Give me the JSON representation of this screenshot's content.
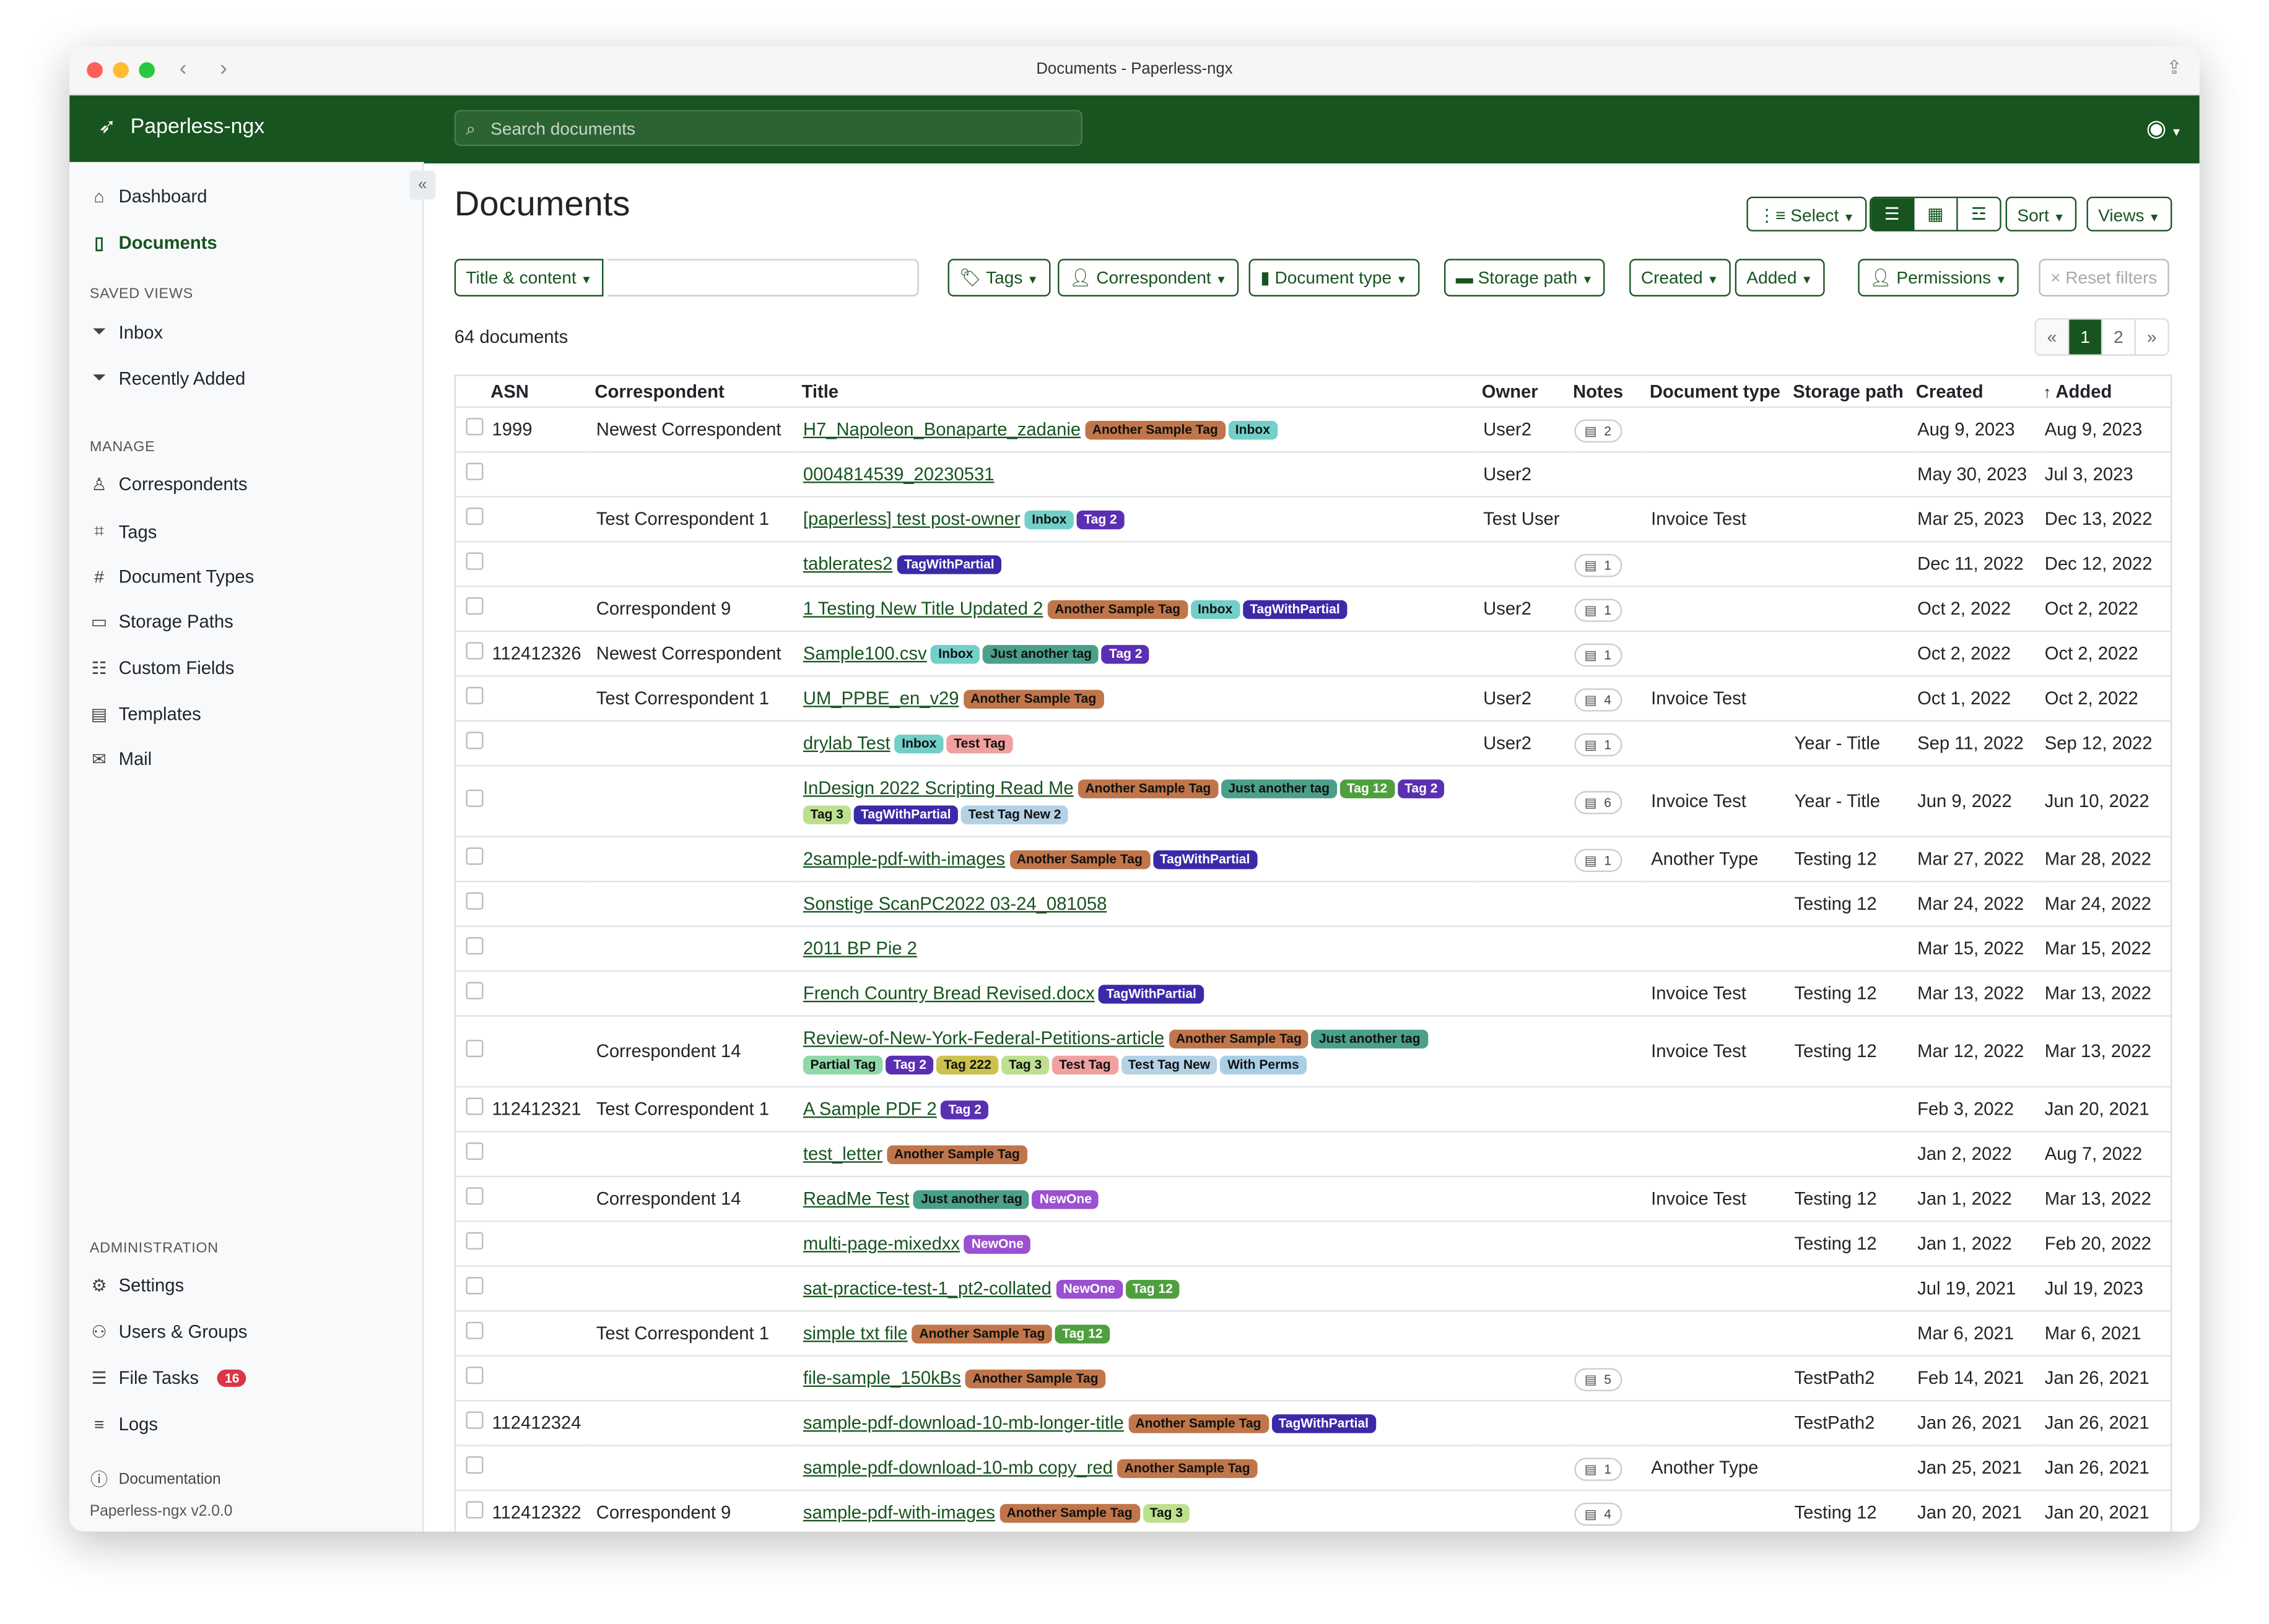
{
  "window": {
    "title": "Documents - Paperless-ngx"
  },
  "app": {
    "name": "Paperless-ngx",
    "search_placeholder": "Search documents"
  },
  "sidebar": {
    "items": [
      {
        "label": "Dashboard",
        "icon": "house-icon"
      },
      {
        "label": "Documents",
        "icon": "file-icon"
      }
    ],
    "saved_views_heading": "SAVED VIEWS",
    "saved_views": [
      {
        "label": "Inbox"
      },
      {
        "label": "Recently Added"
      }
    ],
    "manage_heading": "MANAGE",
    "manage": [
      {
        "label": "Correspondents",
        "icon": "person-icon"
      },
      {
        "label": "Tags",
        "icon": "tag-icon"
      },
      {
        "label": "Document Types",
        "icon": "hash-icon"
      },
      {
        "label": "Storage Paths",
        "icon": "folder-icon"
      },
      {
        "label": "Custom Fields",
        "icon": "list-icon"
      },
      {
        "label": "Templates",
        "icon": "template-icon"
      },
      {
        "label": "Mail",
        "icon": "envelope-icon"
      }
    ],
    "admin_heading": "ADMINISTRATION",
    "admin": [
      {
        "label": "Settings",
        "icon": "gear-icon"
      },
      {
        "label": "Users & Groups",
        "icon": "people-icon"
      },
      {
        "label": "File Tasks",
        "icon": "tasks-icon",
        "badge": "16"
      },
      {
        "label": "Logs",
        "icon": "logs-icon"
      }
    ],
    "documentation": "Documentation",
    "version": "Paperless-ngx v2.0.0"
  },
  "main": {
    "title": "Documents",
    "select": "Select",
    "sort": "Sort",
    "views": "Views",
    "filters": {
      "title_content": "Title & content",
      "tags": "Tags",
      "correspondent": "Correspondent",
      "document_type": "Document type",
      "storage_path": "Storage path",
      "created": "Created",
      "added": "Added",
      "permissions": "Permissions",
      "reset": "Reset filters"
    },
    "count": "64 documents",
    "pager": {
      "prev": "«",
      "pages": [
        "1",
        "2"
      ],
      "current": "1",
      "next": "»"
    },
    "columns": {
      "asn": "ASN",
      "correspondent": "Correspondent",
      "title": "Title",
      "owner": "Owner",
      "notes": "Notes",
      "doctype": "Document type",
      "storage": "Storage path",
      "created": "Created",
      "added": "Added"
    }
  },
  "tag_colors": {
    "Another Sample Tag": [
      "#c0764a",
      "#111"
    ],
    "Inbox": [
      "#72d0c9",
      "#111"
    ],
    "Tag 2": [
      "#5a2fb2",
      "#fff"
    ],
    "TagWithPartial": [
      "#3b2aa8",
      "#fff"
    ],
    "Just another tag": [
      "#4ba08a",
      "#111"
    ],
    "Test Tag": [
      "#f0a19f",
      "#111"
    ],
    "Tag 12": [
      "#4f9f3f",
      "#fff"
    ],
    "Tag 3": [
      "#bde08f",
      "#111"
    ],
    "Test Tag New 2": [
      "#b4d1e6",
      "#111"
    ],
    "Partial Tag": [
      "#8ed9a8",
      "#111"
    ],
    "Tag 222": [
      "#cbc24e",
      "#111"
    ],
    "Test Tag New": [
      "#b4d1e6",
      "#111"
    ],
    "With Perms": [
      "#a9cfe6",
      "#111"
    ],
    "NewOne": [
      "#9a50d0",
      "#fff"
    ]
  },
  "rows": [
    {
      "asn": "1999",
      "correspondent": "Newest Correspondent",
      "title": "H7_Napoleon_Bonaparte_zadanie",
      "tags": [
        "Another Sample Tag",
        "Inbox"
      ],
      "owner": "User2",
      "notes": "2",
      "doctype": "",
      "storage": "",
      "created": "Aug 9, 2023",
      "added": "Aug 9, 2023"
    },
    {
      "asn": "",
      "correspondent": "",
      "title": "0004814539_20230531",
      "tags": [],
      "owner": "User2",
      "notes": "",
      "doctype": "",
      "storage": "",
      "created": "May 30, 2023",
      "added": "Jul 3, 2023"
    },
    {
      "asn": "",
      "correspondent": "Test Correspondent 1",
      "title": "[paperless] test post-owner",
      "tags": [
        "Inbox",
        "Tag 2"
      ],
      "owner": "Test User",
      "notes": "",
      "doctype": "Invoice Test",
      "storage": "",
      "created": "Mar 25, 2023",
      "added": "Dec 13, 2022"
    },
    {
      "asn": "",
      "correspondent": "",
      "title": "tablerates2",
      "tags": [
        "TagWithPartial"
      ],
      "owner": "",
      "notes": "1",
      "doctype": "",
      "storage": "",
      "created": "Dec 11, 2022",
      "added": "Dec 12, 2022"
    },
    {
      "asn": "",
      "correspondent": "Correspondent 9",
      "title": "1 Testing New Title Updated 2",
      "tags": [
        "Another Sample Tag",
        "Inbox",
        "TagWithPartial"
      ],
      "owner": "User2",
      "notes": "1",
      "doctype": "",
      "storage": "",
      "created": "Oct 2, 2022",
      "added": "Oct 2, 2022"
    },
    {
      "asn": "112412326",
      "correspondent": "Newest Correspondent",
      "title": "Sample100.csv",
      "tags": [
        "Inbox",
        "Just another tag",
        "Tag 2"
      ],
      "owner": "",
      "notes": "1",
      "doctype": "",
      "storage": "",
      "created": "Oct 2, 2022",
      "added": "Oct 2, 2022"
    },
    {
      "asn": "",
      "correspondent": "Test Correspondent 1",
      "title": "UM_PPBE_en_v29",
      "tags": [
        "Another Sample Tag"
      ],
      "owner": "User2",
      "notes": "4",
      "doctype": "Invoice Test",
      "storage": "",
      "created": "Oct 1, 2022",
      "added": "Oct 2, 2022"
    },
    {
      "asn": "",
      "correspondent": "",
      "title": "drylab Test",
      "tags": [
        "Inbox",
        "Test Tag"
      ],
      "owner": "User2",
      "notes": "1",
      "doctype": "",
      "storage": "Year - Title",
      "created": "Sep 11, 2022",
      "added": "Sep 12, 2022"
    },
    {
      "asn": "",
      "correspondent": "",
      "title": "InDesign 2022 Scripting Read Me",
      "tags": [
        "Another Sample Tag",
        "Just another tag",
        "Tag 12",
        "Tag 2",
        "Tag 3",
        "TagWithPartial",
        "Test Tag New 2"
      ],
      "owner": "",
      "notes": "6",
      "doctype": "Invoice Test",
      "storage": "Year - Title",
      "created": "Jun 9, 2022",
      "added": "Jun 10, 2022"
    },
    {
      "asn": "",
      "correspondent": "",
      "title": "2sample-pdf-with-images",
      "tags": [
        "Another Sample Tag",
        "TagWithPartial"
      ],
      "owner": "",
      "notes": "1",
      "doctype": "Another Type",
      "storage": "Testing 12",
      "created": "Mar 27, 2022",
      "added": "Mar 28, 2022"
    },
    {
      "asn": "",
      "correspondent": "",
      "title": "Sonstige ScanPC2022 03-24_081058",
      "tags": [],
      "owner": "",
      "notes": "",
      "doctype": "",
      "storage": "Testing 12",
      "created": "Mar 24, 2022",
      "added": "Mar 24, 2022"
    },
    {
      "asn": "",
      "correspondent": "",
      "title": "2011 BP Pie 2",
      "tags": [],
      "owner": "",
      "notes": "",
      "doctype": "",
      "storage": "",
      "created": "Mar 15, 2022",
      "added": "Mar 15, 2022"
    },
    {
      "asn": "",
      "correspondent": "",
      "title": "French Country Bread Revised.docx",
      "tags": [
        "TagWithPartial"
      ],
      "owner": "",
      "notes": "",
      "doctype": "Invoice Test",
      "storage": "Testing 12",
      "created": "Mar 13, 2022",
      "added": "Mar 13, 2022"
    },
    {
      "asn": "",
      "correspondent": "Correspondent 14",
      "title": "Review-of-New-York-Federal-Petitions-article",
      "tags": [
        "Another Sample Tag",
        "Just another tag",
        "Partial Tag",
        "Tag 2",
        "Tag 222",
        "Tag 3",
        "Test Tag",
        "Test Tag New",
        "With Perms"
      ],
      "owner": "",
      "notes": "",
      "doctype": "Invoice Test",
      "storage": "Testing 12",
      "created": "Mar 12, 2022",
      "added": "Mar 13, 2022"
    },
    {
      "asn": "112412321",
      "correspondent": "Test Correspondent 1",
      "title": "A Sample PDF 2",
      "tags": [
        "Tag 2"
      ],
      "owner": "",
      "notes": "",
      "doctype": "",
      "storage": "",
      "created": "Feb 3, 2022",
      "added": "Jan 20, 2021"
    },
    {
      "asn": "",
      "correspondent": "",
      "title": "test_letter",
      "tags": [
        "Another Sample Tag"
      ],
      "owner": "",
      "notes": "",
      "doctype": "",
      "storage": "",
      "created": "Jan 2, 2022",
      "added": "Aug 7, 2022"
    },
    {
      "asn": "",
      "correspondent": "Correspondent 14",
      "title": "ReadMe Test",
      "tags": [
        "Just another tag",
        "NewOne"
      ],
      "owner": "",
      "notes": "",
      "doctype": "Invoice Test",
      "storage": "Testing 12",
      "created": "Jan 1, 2022",
      "added": "Mar 13, 2022"
    },
    {
      "asn": "",
      "correspondent": "",
      "title": "multi-page-mixedxx",
      "tags": [
        "NewOne"
      ],
      "owner": "",
      "notes": "",
      "doctype": "",
      "storage": "Testing 12",
      "created": "Jan 1, 2022",
      "added": "Feb 20, 2022"
    },
    {
      "asn": "",
      "correspondent": "",
      "title": "sat-practice-test-1_pt2-collated",
      "tags": [
        "NewOne",
        "Tag 12"
      ],
      "owner": "",
      "notes": "",
      "doctype": "",
      "storage": "",
      "created": "Jul 19, 2021",
      "added": "Jul 19, 2023"
    },
    {
      "asn": "",
      "correspondent": "Test Correspondent 1",
      "title": "simple txt file",
      "tags": [
        "Another Sample Tag",
        "Tag 12"
      ],
      "owner": "",
      "notes": "",
      "doctype": "",
      "storage": "",
      "created": "Mar 6, 2021",
      "added": "Mar 6, 2021"
    },
    {
      "asn": "",
      "correspondent": "",
      "title": "file-sample_150kBs",
      "tags": [
        "Another Sample Tag"
      ],
      "owner": "",
      "notes": "5",
      "doctype": "",
      "storage": "TestPath2",
      "created": "Feb 14, 2021",
      "added": "Jan 26, 2021"
    },
    {
      "asn": "112412324",
      "correspondent": "",
      "title": "sample-pdf-download-10-mb-longer-title",
      "tags": [
        "Another Sample Tag",
        "TagWithPartial"
      ],
      "owner": "",
      "notes": "",
      "doctype": "",
      "storage": "TestPath2",
      "created": "Jan 26, 2021",
      "added": "Jan 26, 2021"
    },
    {
      "asn": "",
      "correspondent": "",
      "title": "sample-pdf-download-10-mb copy_red",
      "tags": [
        "Another Sample Tag"
      ],
      "owner": "",
      "notes": "1",
      "doctype": "Another Type",
      "storage": "",
      "created": "Jan 25, 2021",
      "added": "Jan 26, 2021"
    },
    {
      "asn": "112412322",
      "correspondent": "Correspondent 9",
      "title": "sample-pdf-with-images",
      "tags": [
        "Another Sample Tag",
        "Tag 3"
      ],
      "owner": "",
      "notes": "4",
      "doctype": "",
      "storage": "Testing 12",
      "created": "Jan 20, 2021",
      "added": "Jan 20, 2021"
    }
  ]
}
